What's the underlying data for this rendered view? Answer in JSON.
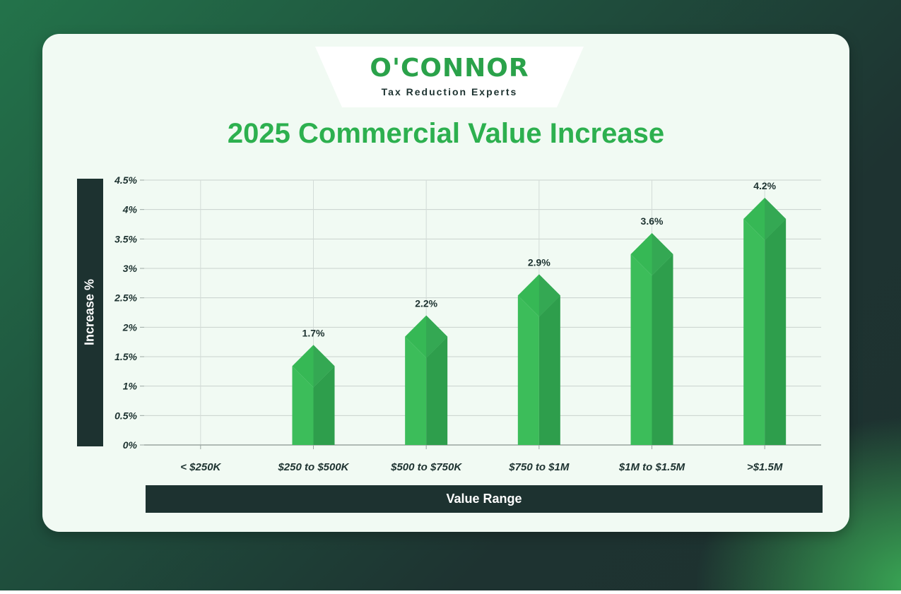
{
  "brand": {
    "logo_text": "O'CONNOR",
    "tagline": "Tax Reduction Experts"
  },
  "colors": {
    "accent": "#2db04f",
    "bar_light": "#3cbd5a",
    "bar_dark": "#2e9e4c",
    "dark_panel": "#1d3230",
    "card": "#f1faf3"
  },
  "chart_data": {
    "type": "bar",
    "title": "2025 Commercial Value Increase",
    "xlabel": "Value Range",
    "ylabel": "Increase %",
    "categories": [
      "< $250K",
      "$250 to $500K",
      "$500 to $750K",
      "$750 to $1M",
      "$1M to $1.5M",
      ">$1.5M"
    ],
    "values": [
      null,
      1.7,
      2.2,
      2.9,
      3.6,
      4.2
    ],
    "data_labels": [
      "",
      "1.7%",
      "2.2%",
      "2.9%",
      "3.6%",
      "4.2%"
    ],
    "yticks": [
      "0%",
      "0.5%",
      "1%",
      "1.5%",
      "2%",
      "2.5%",
      "3%",
      "3.5%",
      "4%",
      "4.5%"
    ],
    "ylim": [
      0,
      4.5
    ],
    "grid": true,
    "legend": "none"
  }
}
